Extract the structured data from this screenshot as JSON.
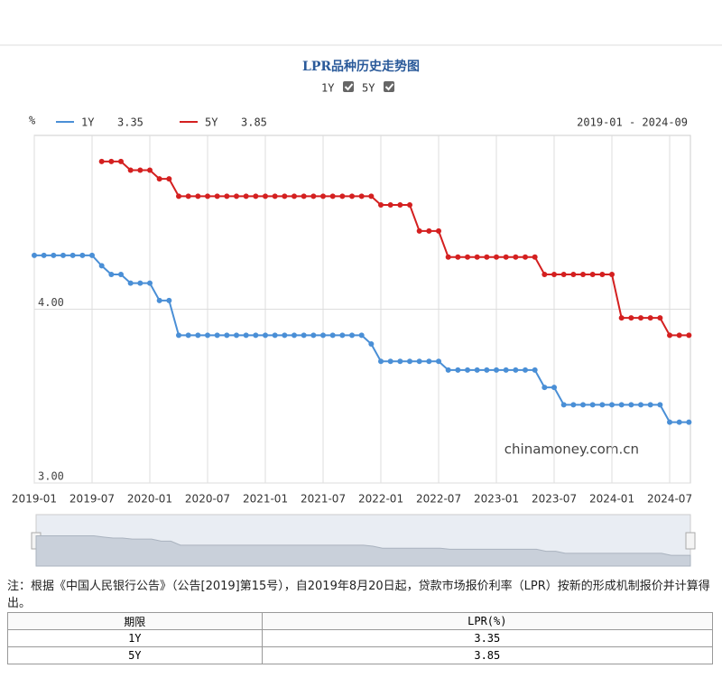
{
  "chart_data": {
    "type": "line",
    "title": "LPR品种历史走势图",
    "unit": "%",
    "range": "2019-01 - 2024-09",
    "watermark": "chinamoney.com.cn",
    "categories": [
      "2019-01",
      null,
      null,
      null,
      null,
      null,
      "2019-07",
      null,
      null,
      null,
      null,
      null,
      "2020-01",
      null,
      null,
      null,
      null,
      null,
      "2020-07",
      null,
      null,
      null,
      null,
      null,
      "2021-01",
      null,
      null,
      null,
      null,
      null,
      "2021-07",
      null,
      null,
      null,
      null,
      null,
      "2022-01",
      null,
      null,
      null,
      null,
      null,
      "2022-07",
      null,
      null,
      null,
      null,
      null,
      "2023-01",
      null,
      null,
      null,
      null,
      null,
      "2023-07",
      null,
      null,
      null,
      null,
      null,
      "2024-01",
      null,
      null,
      null,
      null,
      null,
      "2024-07",
      null,
      null
    ],
    "series": [
      {
        "name": "1Y",
        "color": "#4a8fd6",
        "latest": 3.35,
        "values": [
          4.31,
          4.31,
          4.31,
          4.31,
          4.31,
          4.31,
          4.31,
          4.25,
          4.2,
          4.2,
          4.15,
          4.15,
          4.15,
          4.05,
          4.05,
          3.85,
          3.85,
          3.85,
          3.85,
          3.85,
          3.85,
          3.85,
          3.85,
          3.85,
          3.85,
          3.85,
          3.85,
          3.85,
          3.85,
          3.85,
          3.85,
          3.85,
          3.85,
          3.85,
          3.85,
          3.8,
          3.7,
          3.7,
          3.7,
          3.7,
          3.7,
          3.7,
          3.7,
          3.65,
          3.65,
          3.65,
          3.65,
          3.65,
          3.65,
          3.65,
          3.65,
          3.65,
          3.65,
          3.55,
          3.55,
          3.45,
          3.45,
          3.45,
          3.45,
          3.45,
          3.45,
          3.45,
          3.45,
          3.45,
          3.45,
          3.45,
          3.35,
          3.35,
          3.35
        ]
      },
      {
        "name": "5Y",
        "color": "#d42020",
        "latest": 3.85,
        "values": [
          null,
          null,
          null,
          null,
          null,
          null,
          null,
          4.85,
          4.85,
          4.85,
          4.8,
          4.8,
          4.8,
          4.75,
          4.75,
          4.65,
          4.65,
          4.65,
          4.65,
          4.65,
          4.65,
          4.65,
          4.65,
          4.65,
          4.65,
          4.65,
          4.65,
          4.65,
          4.65,
          4.65,
          4.65,
          4.65,
          4.65,
          4.65,
          4.65,
          4.65,
          4.6,
          4.6,
          4.6,
          4.6,
          4.45,
          4.45,
          4.45,
          4.3,
          4.3,
          4.3,
          4.3,
          4.3,
          4.3,
          4.3,
          4.3,
          4.3,
          4.3,
          4.2,
          4.2,
          4.2,
          4.2,
          4.2,
          4.2,
          4.2,
          4.2,
          3.95,
          3.95,
          3.95,
          3.95,
          3.95,
          3.85,
          3.85,
          3.85
        ]
      }
    ],
    "ylim": [
      3,
      5
    ],
    "yticks": [
      {
        "value": 3,
        "label": "3.00"
      },
      {
        "value": 4,
        "label": "4.00"
      }
    ],
    "grid": true
  },
  "note": "注：根据《中国人民银行公告》（公告[2019]第15号），自2019年8月20日起，贷款市场报价利率（LPR）按新的形成机制报价并计算得出。",
  "table": {
    "header": [
      "期限",
      "LPR(%)"
    ],
    "rows": [
      [
        "1Y",
        3.35
      ],
      [
        "5Y",
        3.85
      ]
    ]
  }
}
